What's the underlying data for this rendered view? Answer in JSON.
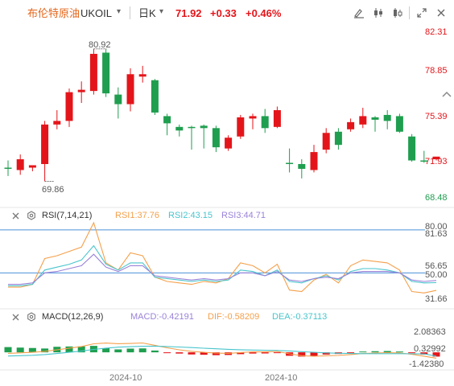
{
  "header": {
    "name": "布伦特原油",
    "symbol": "UKOIL",
    "period": "日K",
    "last": "71.92",
    "change": "+0.33",
    "change_pct": "+0.46%"
  },
  "colors": {
    "up": "#e4151a",
    "down": "#1f9e4f",
    "title": "#e4651a",
    "rsi1": "#f4a04b",
    "rsi2": "#49c5cc",
    "rsi3": "#9a82d9",
    "macd_line": "#f4a04b",
    "dif": "#f4a04b",
    "dea": "#49c5cc",
    "hline": "#4a90d9"
  },
  "icons": {
    "symbol_dropdown": "chevron-down-icon",
    "period_dropdown": "chevron-down-icon",
    "draw_tool": "pen-icon",
    "indicator_tool": "candlestick-icon",
    "compare_tool": "compare-icon",
    "fullscreen": "expand-icon",
    "close": "close-icon",
    "collapse": "chevron-up-icon",
    "indicator_close": "close-icon",
    "indicator_settings": "gear-icon"
  },
  "main_chart": {
    "price_labels": [
      "82.31",
      "78.85",
      "75.39",
      "71.93",
      "68.48"
    ],
    "high_label": "80.92",
    "low_label": "69.86"
  },
  "rsi": {
    "title": "RSI(7,14,21)",
    "rsi1": "RSI1:37.76",
    "rsi2": "RSI2:43.15",
    "rsi3": "RSI3:44.71",
    "labels": [
      "80.00",
      "81.63",
      "56.65",
      "50.00",
      "31.66"
    ]
  },
  "macd": {
    "title": "MACD(12,26,9)",
    "macd": "MACD:-0.42191",
    "dif": "DIF:-0.58209",
    "dea": "DEA:-0.37113",
    "labels": [
      "2.08363",
      "0.32992",
      "-1.42380"
    ]
  },
  "x_axis": {
    "labels": [
      "2024-10",
      "2024-10"
    ]
  },
  "chart_data": {
    "type": "candlestick",
    "ylim": [
      68.48,
      82.31
    ],
    "candles": [
      {
        "o": 71.0,
        "h": 71.6,
        "l": 70.3,
        "c": 70.9
      },
      {
        "o": 70.8,
        "h": 72.1,
        "l": 70.4,
        "c": 71.7
      },
      {
        "o": 71.0,
        "h": 71.2,
        "l": 70.7,
        "c": 71.2
      },
      {
        "o": 71.3,
        "h": 74.9,
        "l": 69.86,
        "c": 74.6
      },
      {
        "o": 74.6,
        "h": 75.8,
        "l": 74.2,
        "c": 74.9
      },
      {
        "o": 74.9,
        "h": 77.6,
        "l": 74.4,
        "c": 77.3
      },
      {
        "o": 77.3,
        "h": 78.2,
        "l": 76.4,
        "c": 77.5
      },
      {
        "o": 77.4,
        "h": 80.92,
        "l": 77.1,
        "c": 80.5
      },
      {
        "o": 80.6,
        "h": 80.9,
        "l": 76.9,
        "c": 77.2
      },
      {
        "o": 77.1,
        "h": 77.7,
        "l": 75.1,
        "c": 76.3
      },
      {
        "o": 76.3,
        "h": 79.3,
        "l": 75.7,
        "c": 78.8
      },
      {
        "o": 78.6,
        "h": 79.5,
        "l": 78.1,
        "c": 78.8
      },
      {
        "o": 78.3,
        "h": 78.4,
        "l": 75.4,
        "c": 75.6
      },
      {
        "o": 75.3,
        "h": 75.5,
        "l": 73.7,
        "c": 74.7
      },
      {
        "o": 74.4,
        "h": 74.6,
        "l": 73.6,
        "c": 74.1
      },
      {
        "o": 74.4,
        "h": 74.5,
        "l": 72.5,
        "c": 74.3
      },
      {
        "o": 74.5,
        "h": 74.6,
        "l": 72.6,
        "c": 74.3
      },
      {
        "o": 74.3,
        "h": 74.5,
        "l": 72.3,
        "c": 72.7
      },
      {
        "o": 72.6,
        "h": 73.7,
        "l": 72.4,
        "c": 73.5
      },
      {
        "o": 73.6,
        "h": 75.4,
        "l": 73.4,
        "c": 75.2
      },
      {
        "o": 75.1,
        "h": 75.5,
        "l": 74.2,
        "c": 75.3
      },
      {
        "o": 75.3,
        "h": 75.9,
        "l": 73.9,
        "c": 74.3
      },
      {
        "o": 74.4,
        "h": 76.1,
        "l": 74.3,
        "c": 75.8
      },
      {
        "o": 71.4,
        "h": 72.6,
        "l": 70.6,
        "c": 71.3
      },
      {
        "o": 71.3,
        "h": 71.7,
        "l": 70.1,
        "c": 70.9
      },
      {
        "o": 70.8,
        "h": 72.9,
        "l": 70.6,
        "c": 72.3
      },
      {
        "o": 72.5,
        "h": 74.3,
        "l": 72.2,
        "c": 73.9
      },
      {
        "o": 74.0,
        "h": 74.3,
        "l": 72.5,
        "c": 72.9
      },
      {
        "o": 74.2,
        "h": 75.1,
        "l": 74.0,
        "c": 74.8
      },
      {
        "o": 74.6,
        "h": 76.0,
        "l": 74.3,
        "c": 75.3
      },
      {
        "o": 75.2,
        "h": 75.3,
        "l": 74.0,
        "c": 75.0
      },
      {
        "o": 75.4,
        "h": 75.8,
        "l": 74.2,
        "c": 74.9
      },
      {
        "o": 75.3,
        "h": 75.5,
        "l": 73.9,
        "c": 74.0
      },
      {
        "o": 73.6,
        "h": 73.8,
        "l": 71.5,
        "c": 71.6
      },
      {
        "o": 71.6,
        "h": 72.4,
        "l": 71.4,
        "c": 71.5
      },
      {
        "o": 71.7,
        "h": 71.9,
        "l": 71.6,
        "c": 71.92
      }
    ],
    "rsi_ylim": [
      31.66,
      81.63
    ],
    "rsi1": [
      40,
      40,
      42,
      60,
      62,
      65,
      68,
      85,
      57,
      52,
      64,
      62,
      47,
      44,
      43,
      42,
      44,
      43,
      46,
      57,
      55,
      50,
      56,
      38,
      37,
      45,
      49,
      43,
      55,
      59,
      58,
      57,
      52,
      37,
      36,
      37.76
    ],
    "rsi2": [
      41,
      41,
      42,
      52,
      54,
      56,
      59,
      69,
      56,
      52,
      57,
      57,
      47,
      46,
      45,
      44,
      45,
      44,
      45,
      52,
      51,
      48,
      52,
      44,
      43,
      46,
      48,
      45,
      51,
      53,
      53,
      52,
      50,
      44,
      43,
      43.15
    ],
    "rsi3": [
      42,
      42,
      43,
      50,
      51,
      53,
      55,
      63,
      54,
      51,
      55,
      55,
      48,
      47,
      46,
      45,
      46,
      45,
      46,
      50,
      50,
      48,
      51,
      45,
      44,
      46,
      47,
      46,
      50,
      51,
      51,
      51,
      50,
      45,
      44,
      44.71
    ],
    "rsi_levels": [
      80,
      50
    ],
    "macd_ylim": [
      -1.4238,
      2.08363
    ],
    "macd_hist": [
      0.52,
      0.47,
      0.43,
      0.38,
      0.55,
      0.58,
      0.59,
      0.64,
      0.41,
      0.29,
      0.37,
      0.39,
      0.18,
      -0.02,
      -0.12,
      -0.21,
      -0.24,
      -0.28,
      -0.26,
      -0.18,
      -0.12,
      -0.11,
      -0.05,
      -0.34,
      -0.42,
      -0.35,
      -0.22,
      -0.16,
      -0.02,
      0.08,
      0.11,
      0.13,
      0.08,
      -0.08,
      -0.22,
      -0.42191
    ],
    "dif": [
      -0.1,
      -0.05,
      0.0,
      0.1,
      0.25,
      0.42,
      0.58,
      0.85,
      0.92,
      0.86,
      0.88,
      0.93,
      0.7,
      0.45,
      0.25,
      0.1,
      0.0,
      -0.08,
      -0.1,
      -0.02,
      0.05,
      0.04,
      0.09,
      -0.15,
      -0.33,
      -0.39,
      -0.34,
      -0.31,
      -0.22,
      -0.12,
      -0.07,
      -0.03,
      -0.06,
      -0.2,
      -0.38,
      -0.58209
    ],
    "dea": [
      -0.36,
      -0.33,
      -0.29,
      -0.22,
      -0.12,
      0.0,
      0.12,
      0.29,
      0.42,
      0.51,
      0.56,
      0.6,
      0.62,
      0.58,
      0.53,
      0.47,
      0.41,
      0.35,
      0.3,
      0.26,
      0.23,
      0.2,
      0.19,
      0.14,
      0.07,
      0.0,
      -0.05,
      -0.09,
      -0.12,
      -0.13,
      -0.13,
      -0.13,
      -0.13,
      -0.14,
      -0.16,
      -0.37113
    ],
    "x_ticks": [
      {
        "index": 11,
        "label": "2024-10"
      },
      {
        "index": 24,
        "label": "2024-10"
      }
    ]
  }
}
